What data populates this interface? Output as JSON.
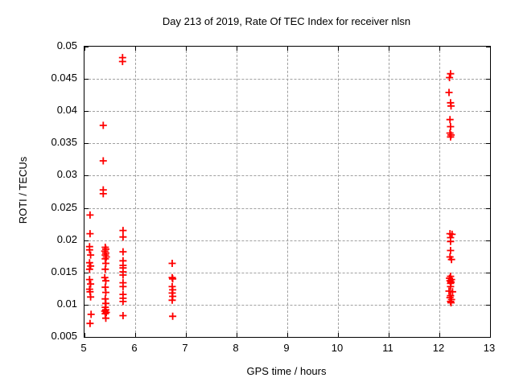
{
  "chart_data": {
    "type": "scatter",
    "title": "Day 213 of 2019, Rate Of TEC Index for receiver nlsn",
    "xlabel": "GPS time / hours",
    "ylabel": "ROTI / TECUs",
    "xlim": [
      5,
      13
    ],
    "ylim": [
      0.005,
      0.05
    ],
    "xticks": {
      "values": [
        5,
        6,
        7,
        8,
        9,
        10,
        11,
        12,
        13
      ],
      "labels": [
        "5",
        "6",
        "7",
        "8",
        "9",
        "10",
        "11",
        "12",
        "13"
      ]
    },
    "yticks": {
      "values": [
        0.005,
        0.01,
        0.015,
        0.02,
        0.025,
        0.03,
        0.035,
        0.04,
        0.045,
        0.05
      ],
      "labels": [
        "0.005",
        "0.01",
        "0.015",
        "0.02",
        "0.025",
        "0.03",
        "0.035",
        "0.04",
        "0.045",
        "0.05"
      ]
    },
    "grid": "dashed",
    "legend": "none",
    "marker": {
      "shape": "plus",
      "color": "#ff0000",
      "size": 9
    },
    "colors": {
      "background": "#ffffff",
      "frame": "#000000",
      "grid": "#a0a0a0",
      "text": "#000000"
    },
    "series": [
      {
        "name": "ROTI",
        "points": [
          [
            5.11,
            0.0239
          ],
          [
            5.11,
            0.021
          ],
          [
            5.1,
            0.019
          ],
          [
            5.1,
            0.0185
          ],
          [
            5.12,
            0.0177
          ],
          [
            5.1,
            0.0165
          ],
          [
            5.12,
            0.016
          ],
          [
            5.1,
            0.0155
          ],
          [
            5.1,
            0.0139
          ],
          [
            5.12,
            0.0132
          ],
          [
            5.1,
            0.0124
          ],
          [
            5.11,
            0.012
          ],
          [
            5.12,
            0.0112
          ],
          [
            5.13,
            0.0085
          ],
          [
            5.11,
            0.0071
          ],
          [
            5.37,
            0.0378
          ],
          [
            5.37,
            0.0323
          ],
          [
            5.37,
            0.0278
          ],
          [
            5.37,
            0.0272
          ],
          [
            5.41,
            0.0189
          ],
          [
            5.42,
            0.0186
          ],
          [
            5.4,
            0.0183
          ],
          [
            5.42,
            0.018
          ],
          [
            5.41,
            0.0177
          ],
          [
            5.43,
            0.0174
          ],
          [
            5.41,
            0.0171
          ],
          [
            5.42,
            0.0164
          ],
          [
            5.41,
            0.0155
          ],
          [
            5.4,
            0.0142
          ],
          [
            5.42,
            0.0137
          ],
          [
            5.41,
            0.0127
          ],
          [
            5.42,
            0.0119
          ],
          [
            5.41,
            0.0109
          ],
          [
            5.42,
            0.0102
          ],
          [
            5.41,
            0.0096
          ],
          [
            5.42,
            0.0092
          ],
          [
            5.4,
            0.009
          ],
          [
            5.43,
            0.0088
          ],
          [
            5.41,
            0.0086
          ],
          [
            5.42,
            0.0079
          ],
          [
            5.75,
            0.0483
          ],
          [
            5.75,
            0.0477
          ],
          [
            5.76,
            0.0215
          ],
          [
            5.76,
            0.0205
          ],
          [
            5.76,
            0.0182
          ],
          [
            5.76,
            0.0168
          ],
          [
            5.76,
            0.0161
          ],
          [
            5.76,
            0.0157
          ],
          [
            5.76,
            0.0151
          ],
          [
            5.76,
            0.0146
          ],
          [
            5.76,
            0.0134
          ],
          [
            5.76,
            0.0128
          ],
          [
            5.76,
            0.0116
          ],
          [
            5.76,
            0.011
          ],
          [
            5.76,
            0.0105
          ],
          [
            5.76,
            0.0083
          ],
          [
            6.73,
            0.0164
          ],
          [
            6.73,
            0.0142
          ],
          [
            6.74,
            0.014
          ],
          [
            6.73,
            0.0128
          ],
          [
            6.74,
            0.0123
          ],
          [
            6.73,
            0.0118
          ],
          [
            6.74,
            0.0113
          ],
          [
            6.73,
            0.0107
          ],
          [
            6.74,
            0.0082
          ],
          [
            12.22,
            0.0458
          ],
          [
            12.2,
            0.0452
          ],
          [
            12.19,
            0.0429
          ],
          [
            12.22,
            0.0413
          ],
          [
            12.23,
            0.0408
          ],
          [
            12.21,
            0.0387
          ],
          [
            12.22,
            0.0376
          ],
          [
            12.21,
            0.0366
          ],
          [
            12.23,
            0.0363
          ],
          [
            12.22,
            0.036
          ],
          [
            12.21,
            0.021
          ],
          [
            12.25,
            0.0209
          ],
          [
            12.22,
            0.0204
          ],
          [
            12.22,
            0.0198
          ],
          [
            12.22,
            0.0184
          ],
          [
            12.21,
            0.0174
          ],
          [
            12.24,
            0.017
          ],
          [
            12.22,
            0.0144
          ],
          [
            12.2,
            0.0141
          ],
          [
            12.24,
            0.0139
          ],
          [
            12.21,
            0.0137
          ],
          [
            12.23,
            0.0135
          ],
          [
            12.22,
            0.0133
          ],
          [
            12.22,
            0.0128
          ],
          [
            12.19,
            0.0121
          ],
          [
            12.26,
            0.012
          ],
          [
            12.22,
            0.0114
          ],
          [
            12.21,
            0.0111
          ],
          [
            12.24,
            0.0108
          ],
          [
            12.22,
            0.0105
          ],
          [
            12.23,
            0.0103
          ]
        ]
      }
    ]
  }
}
